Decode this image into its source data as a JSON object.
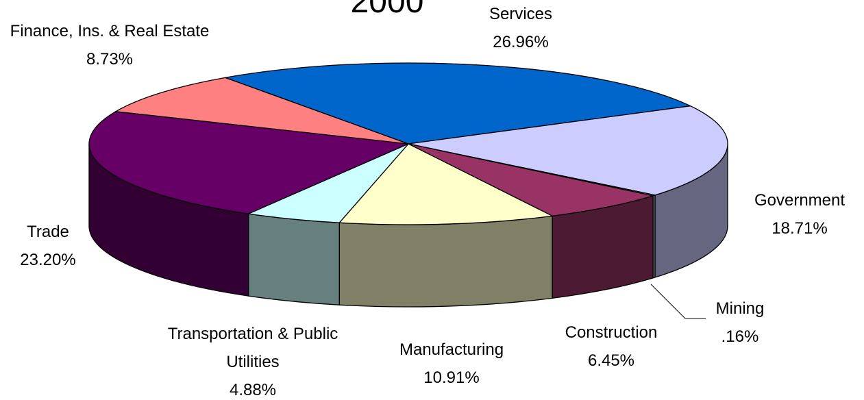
{
  "chart_data": {
    "type": "pie3d",
    "title": "2000",
    "categories": [
      "Services",
      "Government",
      "Mining",
      "Construction",
      "Manufacturing",
      "Transportation & Public Utilities",
      "Trade",
      "Finance, Ins. & Real Estate"
    ],
    "values": [
      26.96,
      18.71,
      0.16,
      6.45,
      10.91,
      4.88,
      23.2,
      8.73
    ],
    "value_labels": [
      "26.96%",
      "18.71%",
      ".16%",
      "6.45%",
      "10.91%",
      "4.88%",
      "23.20%",
      "8.73%"
    ],
    "colors": [
      "#0066cc",
      "#ccccff",
      "#e8e8f0",
      "#993366",
      "#ffffcc",
      "#ccffff",
      "#660066",
      "#ff8080"
    ]
  }
}
